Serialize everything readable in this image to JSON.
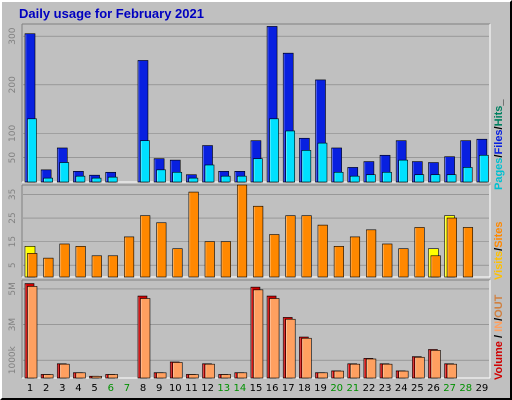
{
  "chart_data": {
    "type": "bar",
    "title": "Daily usage for February 2021",
    "days": [
      "1",
      "2",
      "3",
      "4",
      "5",
      "6",
      "7",
      "8",
      "9",
      "10",
      "11",
      "12",
      "13",
      "14",
      "15",
      "16",
      "17",
      "18",
      "19",
      "20",
      "21",
      "22",
      "23",
      "24",
      "25",
      "26",
      "27",
      "28",
      "29"
    ],
    "weekend_days": [
      "6",
      "7",
      "13",
      "14",
      "20",
      "21",
      "27",
      "28"
    ],
    "colors": {
      "hits": "#0820e0",
      "files": "#00e0ff",
      "pages": "#00c0d0",
      "visits": "#ff8800",
      "sites": "#ffff00",
      "kbytes": "#d00000",
      "kbytes_light": "#ffa060",
      "title": "#0000c0",
      "weekday_label": "#000000",
      "weekend_label": "#009000"
    },
    "panels": [
      {
        "name": "hits_files_pages",
        "yticks": [
          "300",
          "200",
          "100",
          "50"
        ],
        "ytick_values": [
          300,
          200,
          100,
          50
        ],
        "ymax": 325,
        "series": [
          {
            "name": "Hits",
            "color": "#0820e0",
            "values": [
              305,
              25,
              70,
              22,
              14,
              20,
              0,
              250,
              48,
              45,
              15,
              75,
              22,
              22,
              85,
              320,
              265,
              90,
              210,
              70,
              30,
              42,
              55,
              85,
              42,
              40,
              52,
              85,
              88
            ]
          },
          {
            "name": "Files",
            "color": "#00e0ff",
            "values": [
              130,
              8,
              40,
              12,
              8,
              10,
              0,
              85,
              25,
              20,
              8,
              35,
              12,
              12,
              48,
              130,
              105,
              65,
              80,
              20,
              12,
              15,
              20,
              45,
              15,
              15,
              15,
              30,
              55
            ]
          },
          {
            "name": "Pages",
            "color": "#00c0d0",
            "values": [
              0,
              0,
              0,
              0,
              0,
              0,
              0,
              0,
              0,
              0,
              0,
              0,
              0,
              0,
              0,
              0,
              0,
              0,
              0,
              0,
              0,
              0,
              0,
              0,
              0,
              0,
              0,
              0,
              0
            ]
          }
        ],
        "legend": [
          "Pages",
          "Files",
          "Hits"
        ]
      },
      {
        "name": "visits_sites",
        "yticks": [
          "35",
          "25",
          "15",
          "5"
        ],
        "ytick_values": [
          35,
          25,
          15,
          5
        ],
        "ymax": 39,
        "series": [
          {
            "name": "Sites",
            "color": "#ffff00",
            "values": [
              13,
              0,
              0,
              0,
              0,
              0,
              0,
              0,
              0,
              0,
              0,
              0,
              0,
              0,
              0,
              0,
              0,
              0,
              0,
              0,
              0,
              0,
              0,
              0,
              0,
              12,
              26,
              0,
              0
            ]
          },
          {
            "name": "Visits",
            "color": "#ff8800",
            "values": [
              10,
              8,
              14,
              13,
              9,
              9,
              17,
              26,
              23,
              12,
              36,
              15,
              15,
              39,
              30,
              18,
              26,
              26,
              22,
              13,
              17,
              20,
              14,
              12,
              21,
              9,
              25,
              21,
              0
            ]
          }
        ],
        "legend": [
          "Visits",
          "Sites"
        ]
      },
      {
        "name": "kbytes_in_out",
        "yticks": [
          "5M",
          "3M",
          "1000k"
        ],
        "ytick_values": [
          5,
          3,
          1
        ],
        "ymax": 5.5,
        "series": [
          {
            "name": "KBytes",
            "color": "#d00000",
            "values": [
              5.3,
              0.2,
              0.8,
              0.3,
              0.1,
              0.2,
              0,
              4.6,
              0.3,
              0.9,
              0.2,
              0.8,
              0.2,
              0.3,
              5.1,
              4.6,
              3.4,
              2.3,
              0.3,
              0.4,
              0.8,
              1.1,
              0.8,
              0.4,
              1.2,
              1.6,
              0.8,
              0,
              0
            ]
          },
          {
            "name": "IN",
            "color": "#ffa060",
            "values": [
              0,
              0,
              0,
              0,
              0,
              0,
              0,
              0,
              0,
              0,
              0,
              0,
              0,
              0,
              0,
              0,
              0,
              0,
              0,
              0,
              0,
              0,
              0,
              0,
              0,
              0,
              0,
              0,
              0
            ]
          },
          {
            "name": "OUT",
            "color": "#d08040",
            "values": [
              0,
              0,
              0,
              0,
              0,
              0,
              0,
              0,
              0,
              0,
              0,
              0,
              0,
              0,
              0,
              0,
              0,
              0,
              0,
              0,
              0,
              0,
              0,
              0,
              0,
              0,
              0,
              0,
              0
            ]
          }
        ],
        "legend": [
          "Volume",
          "IN",
          "OUT"
        ]
      }
    ]
  },
  "labels": {
    "title": "Daily usage for February 2021",
    "legend_p1_pages": "Pages",
    "legend_p1_files": "Files",
    "legend_p1_hits": "Hits",
    "legend_p2_visits": "Visits",
    "legend_p2_sites": "Sites",
    "legend_p3_volume": "Volume",
    "legend_p3_in": "IN",
    "legend_p3_out": "OUT"
  }
}
